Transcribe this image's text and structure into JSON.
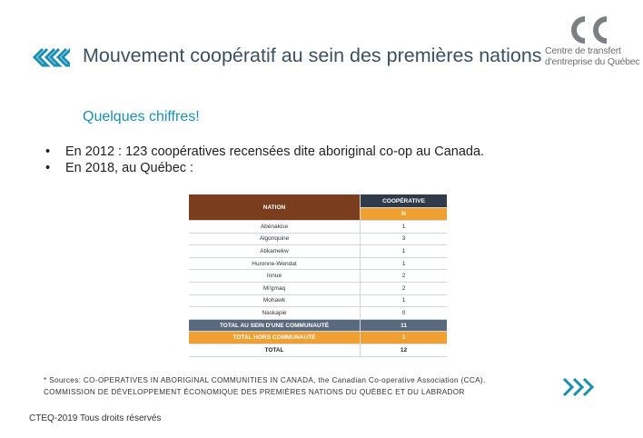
{
  "slide": {
    "title": "Mouvement coopératif au sein des premières nations",
    "subtitle": "Quelques chiffres!",
    "bullets": [
      "En 2012 : 123 coopératives recensées dite aboriginal co-op au Canada.",
      "En 2018, au Québec :"
    ],
    "sources": [
      "* Sources: CO-OPERATIVES IN ABORIGINAL COMMUNITIES IN CANADA, the Canadian Co-operative Association (CCA).",
      "COMMISSION DE DÉVELOPPEMENT ÉCONOMIQUE DES PREMIÈRES NATIONS DU QUÉBEC ET DU LABRADOR"
    ],
    "footer": "CTEQ-2019 Tous droits réservés"
  },
  "logo": {
    "line1": "Centre de transfert",
    "line2": "d'entreprise du Québec"
  },
  "colors": {
    "title": "#3c4f63",
    "subtitle": "#1a8fb6",
    "accent_blue": "#1a8fb6",
    "header_brown": "#7a3d1e",
    "header_navy": "#2f3a4b",
    "orange": "#f0a030",
    "slate": "#5a6a7e"
  },
  "table": {
    "header_nation": "NATION",
    "header_coop": "COOPÉRATIVE",
    "header_n": "N",
    "rows": [
      {
        "nation": "Abénakise",
        "n": "1"
      },
      {
        "nation": "Algonquine",
        "n": "3"
      },
      {
        "nation": "Atikamekw",
        "n": "1"
      },
      {
        "nation": "Huronne-Wendat",
        "n": "1"
      },
      {
        "nation": "Innue",
        "n": "2"
      },
      {
        "nation": "Mi'gmaq",
        "n": "2"
      },
      {
        "nation": "Mohawk",
        "n": "1"
      },
      {
        "nation": "Naskapie",
        "n": "0"
      }
    ],
    "total_in_label": "TOTAL AU SEIN D'UNE COMMUNAUTÉ",
    "total_in_value": "11",
    "total_out_label": "TOTAL HORS COMMUNAUTÉ",
    "total_out_value": "1",
    "grand_label": "TOTAL",
    "grand_value": "12"
  }
}
